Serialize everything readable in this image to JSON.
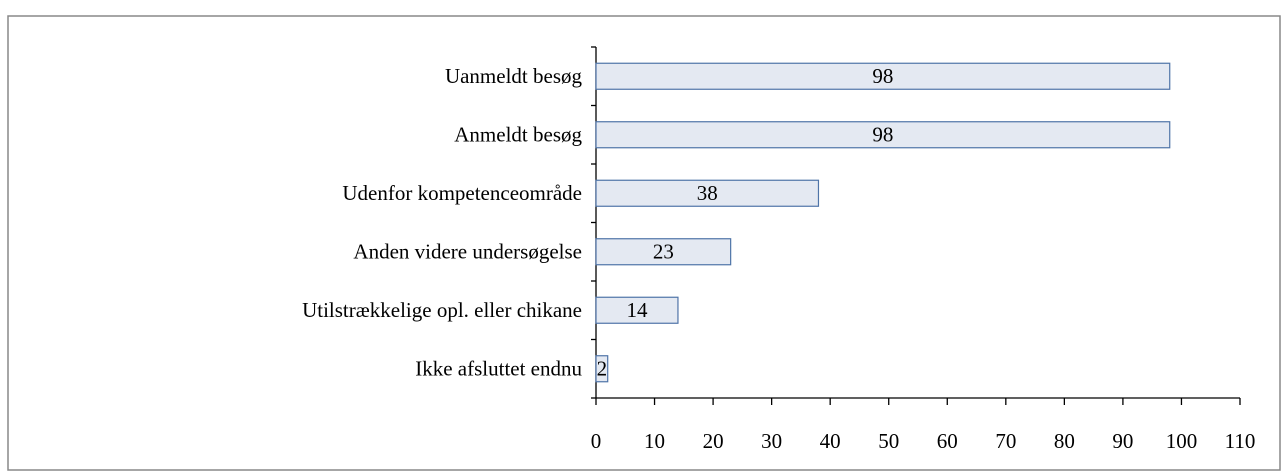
{
  "chart_data": {
    "type": "bar",
    "orientation": "horizontal",
    "categories": [
      "Uanmeldt besøg",
      "Anmeldt besøg",
      "Udenfor kompetenceområde",
      "Anden videre undersøgelse",
      "Utilstrækkelige opl. eller chikane",
      "Ikke afsluttet endnu"
    ],
    "values": [
      98,
      98,
      38,
      23,
      14,
      2
    ],
    "color": "#e4e9f2",
    "edge_color": "#4f74a8",
    "xlim": [
      0,
      110
    ],
    "xticks": [
      0,
      10,
      20,
      30,
      40,
      50,
      60,
      70,
      80,
      90,
      100,
      110
    ]
  }
}
